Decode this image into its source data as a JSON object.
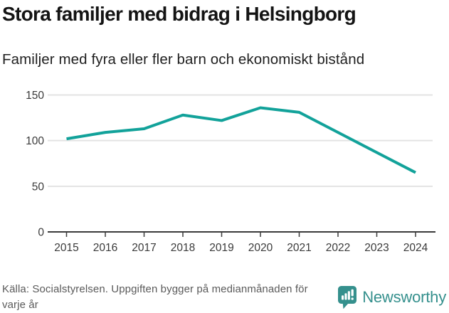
{
  "header": {
    "title": "Stora familjer med bidrag i Helsingborg",
    "subtitle": "Familjer med fyra eller fler barn och ekonomiskt bistånd"
  },
  "chart_data": {
    "type": "line",
    "title": "Stora familjer med bidrag i Helsingborg",
    "subtitle": "Familjer med fyra eller fler barn och ekonomiskt bistånd",
    "categories": [
      "2015",
      "2016",
      "2017",
      "2018",
      "2019",
      "2020",
      "2021",
      "2022",
      "2023",
      "2024"
    ],
    "series": [
      {
        "name": "Familjer med fyra eller fler barn och ekonomiskt bistånd",
        "values": [
          102,
          109,
          113,
          128,
          122,
          136,
          131,
          109,
          87,
          65
        ]
      }
    ],
    "xlabel": "",
    "ylabel": "",
    "ylim": [
      0,
      150
    ],
    "yticks": [
      0,
      50,
      100,
      150
    ],
    "grid": true,
    "legend": false,
    "line_color": "#12a29a",
    "grid_color": "#e3e3e3",
    "axis_color": "#3b3b3b",
    "tick_label_color": "#3a3a3a"
  },
  "footer": {
    "source": "Källa: Socialstyrelsen. Uppgiften bygger på medianmånaden för varje år",
    "brand": "Newsworthy",
    "brand_color": "#35908d",
    "brand_icon": "newsworthy-bar-chart-bubble-icon"
  }
}
